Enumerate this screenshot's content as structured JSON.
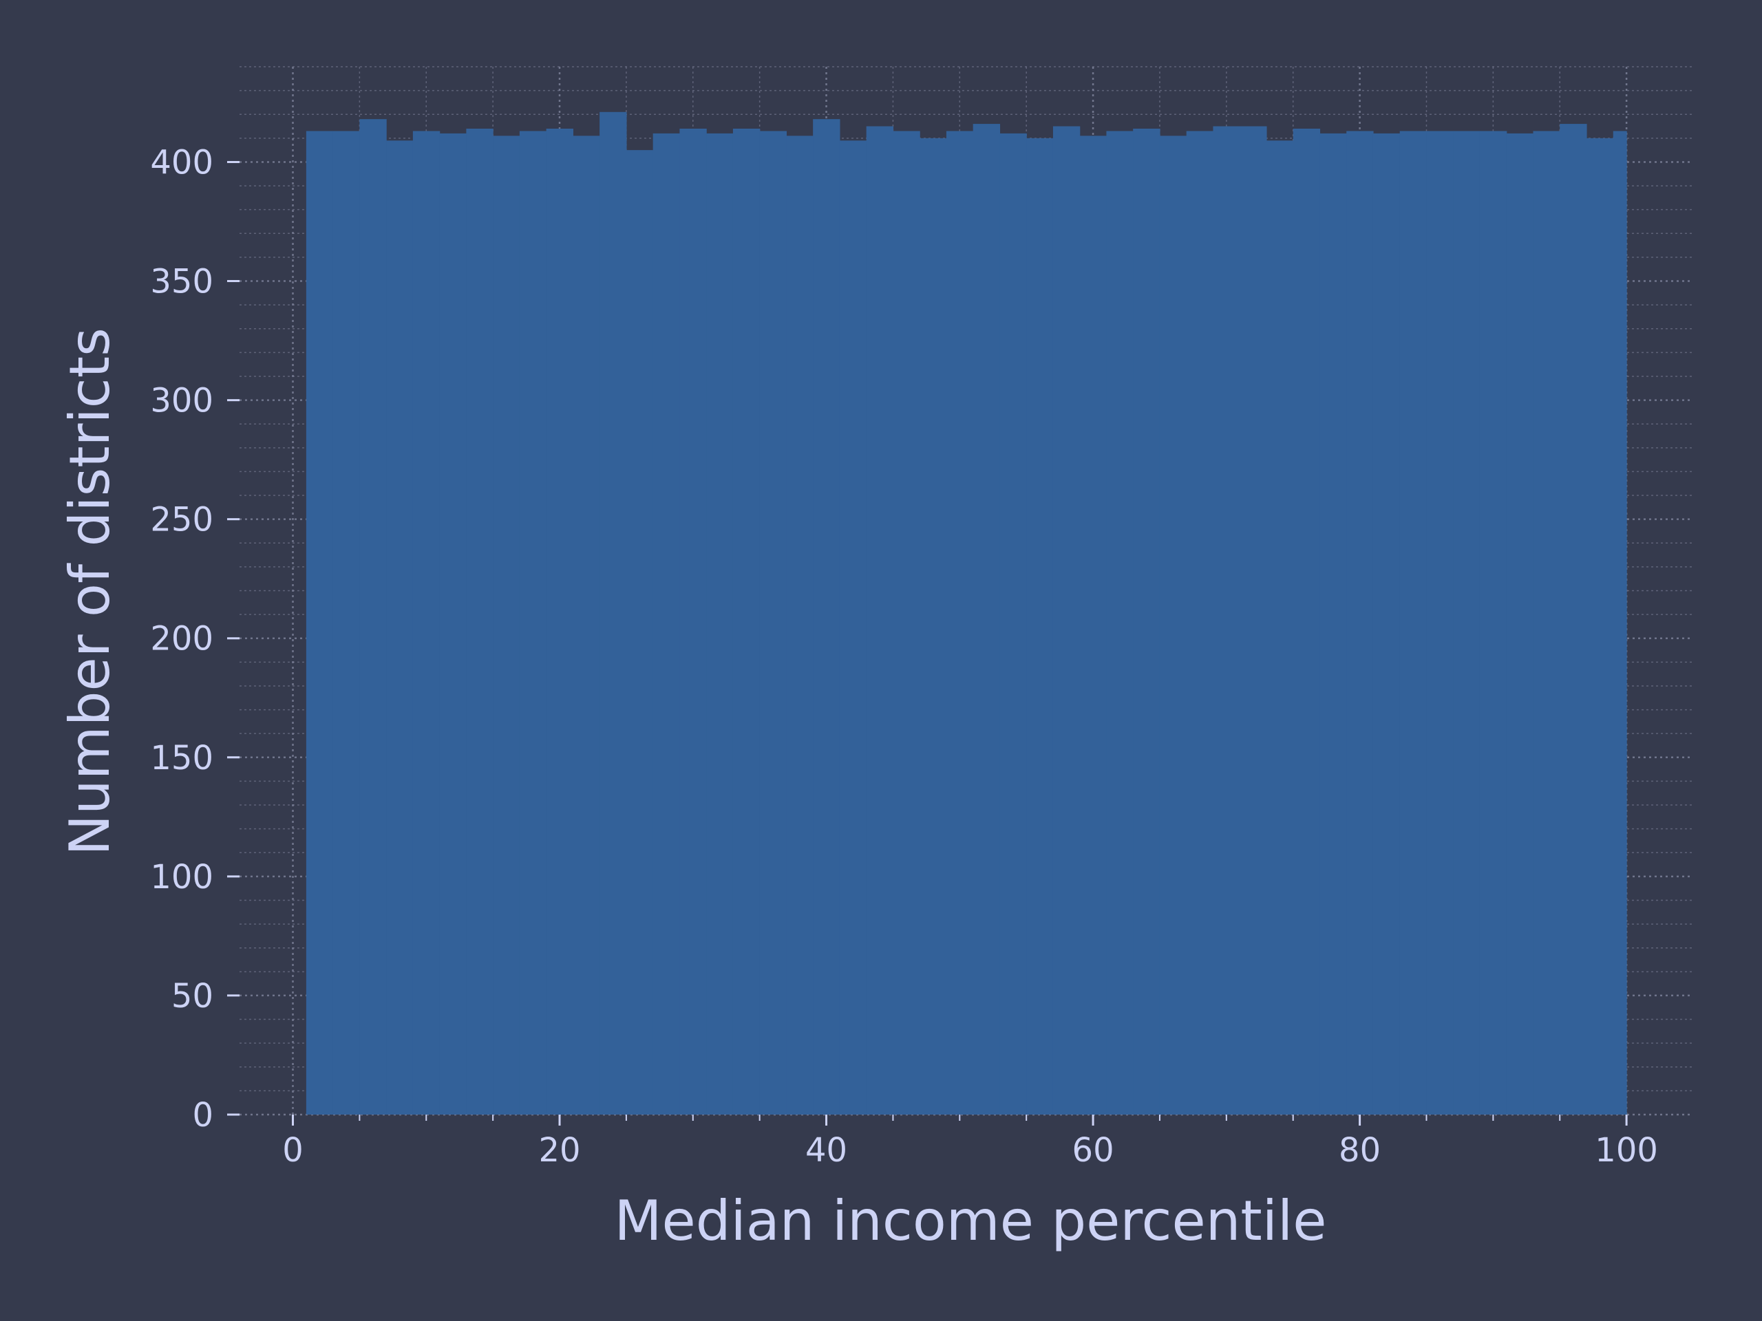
{
  "chart_data": {
    "type": "histogram",
    "xlabel": "Median income percentile",
    "ylabel": "Number of districts",
    "xlim": [
      -4,
      105
    ],
    "ylim": [
      0,
      440
    ],
    "xticks": [
      0,
      20,
      40,
      60,
      80,
      100
    ],
    "xtick_labels": [
      "0",
      "20",
      "40",
      "60",
      "80",
      "100"
    ],
    "yticks": [
      0,
      50,
      100,
      150,
      200,
      250,
      300,
      350,
      400
    ],
    "ytick_labels": [
      "0",
      "50",
      "100",
      "150",
      "200",
      "250",
      "300",
      "350",
      "400"
    ],
    "grid": true,
    "bin_width": 2,
    "bin_start": 1,
    "bin_end": 100,
    "values": [
      413,
      413,
      418,
      409,
      413,
      412,
      414,
      411,
      413,
      414,
      411,
      421,
      405,
      412,
      414,
      412,
      414,
      413,
      411,
      418,
      409,
      415,
      413,
      410,
      413,
      416,
      412,
      410,
      415,
      411,
      413,
      414,
      411,
      413,
      415,
      415,
      409,
      414,
      412,
      413,
      412,
      413,
      413,
      413,
      413,
      412,
      413,
      416,
      410,
      413
    ],
    "colors": {
      "bar": "#336199",
      "background": "#353a4d",
      "text": "#cdd3f5",
      "grid": "#7f849c"
    }
  }
}
